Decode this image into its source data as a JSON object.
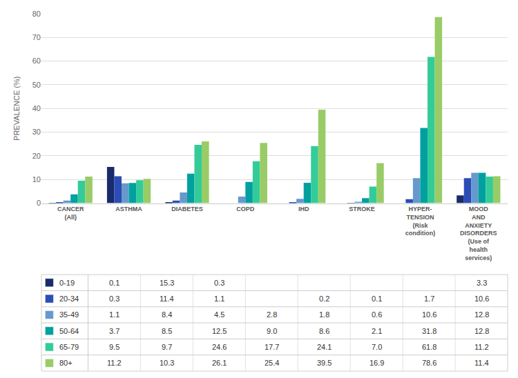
{
  "chart_data": {
    "type": "bar",
    "categories": [
      "CANCER\n(All)",
      "ASTHMA",
      "DIABETES",
      "COPD",
      "IHD",
      "STROKE",
      "HYPER-\nTENSION\n(Risk\ncondition)",
      "MOOD\nAND\nANXIETY\nDISORDERS\n(Use of\nhealth\nservices)"
    ],
    "series": [
      {
        "name": "0-19",
        "color": "#1a2b6b",
        "values": [
          0.1,
          15.3,
          0.3,
          0.0,
          0.0,
          0.0,
          0.0,
          3.3
        ],
        "value_labels": [
          "0.1",
          "15.3",
          "0.3",
          null,
          null,
          null,
          null,
          "3.3"
        ]
      },
      {
        "name": "20-34",
        "color": "#2b4db5",
        "values": [
          0.3,
          11.4,
          1.1,
          0.0,
          0.2,
          0.1,
          1.7,
          10.6
        ],
        "value_labels": [
          "0.3",
          "11.4",
          "1.1",
          null,
          "0.2",
          "0.1",
          "1.7",
          "10.6"
        ]
      },
      {
        "name": "35-49",
        "color": "#6699cc",
        "values": [
          1.1,
          8.4,
          4.5,
          2.8,
          1.8,
          0.6,
          10.6,
          12.8
        ],
        "value_labels": [
          "1.1",
          "8.4",
          "4.5",
          "2.8",
          "1.8",
          "0.6",
          "10.6",
          "12.8"
        ]
      },
      {
        "name": "50-64",
        "color": "#00a0a0",
        "values": [
          3.7,
          8.5,
          12.5,
          9.0,
          8.6,
          2.1,
          31.8,
          12.8
        ],
        "value_labels": [
          "3.7",
          "8.5",
          "12.5",
          "9.0",
          "8.6",
          "2.1",
          "31.8",
          "12.8"
        ]
      },
      {
        "name": "65-79",
        "color": "#33cc99",
        "values": [
          9.5,
          9.7,
          24.6,
          17.7,
          24.1,
          7.0,
          61.8,
          11.2
        ],
        "value_labels": [
          "9.5",
          "9.7",
          "24.6",
          "17.7",
          "24.1",
          "7.0",
          "61.8",
          "11.2"
        ]
      },
      {
        "name": "80+",
        "color": "#99cc66",
        "values": [
          11.2,
          10.3,
          26.1,
          25.4,
          39.5,
          16.9,
          78.6,
          11.4
        ],
        "value_labels": [
          "11.2",
          "10.3",
          "26.1",
          "25.4",
          "39.5",
          "16.9",
          "78.6",
          "11.4"
        ]
      }
    ],
    "ylabel": "PREVALENCE (%)",
    "ylim": [
      0,
      80
    ],
    "yticks": [
      0,
      10,
      20,
      30,
      40,
      50,
      60,
      70,
      80
    ],
    "grid": true
  }
}
